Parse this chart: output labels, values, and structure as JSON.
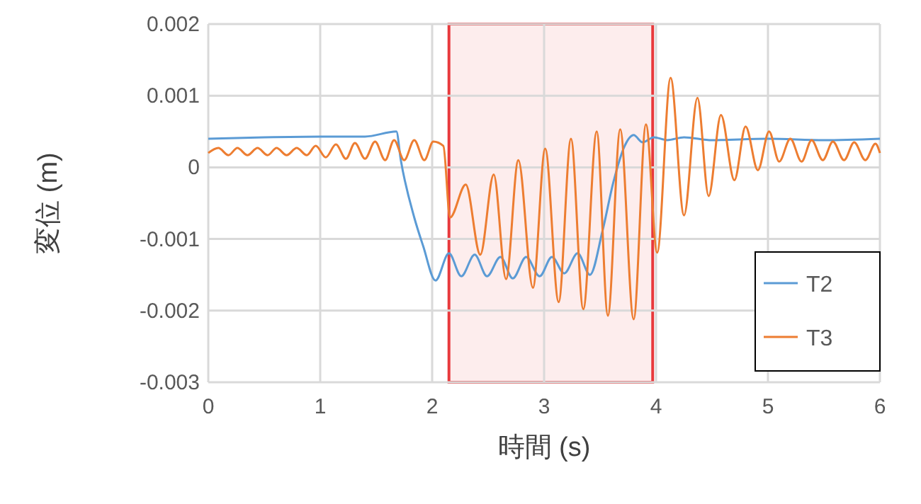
{
  "chart_data": {
    "type": "line",
    "xlabel": "時間 (s)",
    "ylabel": "変位 (m)",
    "xlim": [
      0,
      6
    ],
    "xticks": [
      0,
      1,
      2,
      3,
      4,
      5,
      6
    ],
    "ylim": [
      -0.003,
      0.002
    ],
    "yticks": [
      -0.003,
      -0.002,
      -0.001,
      0,
      0.001,
      0.002
    ],
    "grid": true,
    "legend": "bottom right",
    "marker": "none",
    "line_style": "solid",
    "bands": [
      {
        "axis": "x",
        "from": 2.15,
        "to": 3.97,
        "color": "#e8393c"
      }
    ],
    "series": [
      {
        "name": "T2",
        "color": "#5b9bd5",
        "x": [
          0,
          0.5,
          1.0,
          1.4,
          1.68,
          1.72,
          1.84,
          1.92,
          2.03,
          2.15,
          2.26,
          2.38,
          2.49,
          2.61,
          2.72,
          2.84,
          2.96,
          3.07,
          3.18,
          3.3,
          3.41,
          3.52,
          3.62,
          3.72,
          3.8,
          3.88,
          3.98,
          4.1,
          4.25,
          4.5,
          5.0,
          5.5,
          6.0
        ],
        "values": [
          0.0004,
          0.00042,
          0.00043,
          0.00043,
          0.0005,
          0.0001,
          -0.0007,
          -0.0011,
          -0.00158,
          -0.0012,
          -0.00152,
          -0.00122,
          -0.00152,
          -0.00125,
          -0.00155,
          -0.00125,
          -0.00152,
          -0.00125,
          -0.00148,
          -0.0012,
          -0.0015,
          -0.0009,
          -0.0002,
          0.0003,
          0.00045,
          0.00035,
          0.00042,
          0.00038,
          0.00042,
          0.00038,
          0.0004,
          0.00038,
          0.0004
        ]
      },
      {
        "name": "T3",
        "color": "#ed7d31",
        "x": [
          0,
          0.09,
          0.18,
          0.26,
          0.35,
          0.44,
          0.53,
          0.61,
          0.7,
          0.79,
          0.88,
          0.96,
          1.05,
          1.14,
          1.23,
          1.31,
          1.4,
          1.49,
          1.58,
          1.66,
          1.75,
          1.84,
          1.93,
          2.01,
          2.1,
          2.16,
          2.3,
          2.43,
          2.55,
          2.66,
          2.77,
          2.9,
          3.01,
          3.13,
          3.24,
          3.35,
          3.47,
          3.57,
          3.68,
          3.8,
          3.91,
          4.01,
          4.13,
          4.25,
          4.37,
          4.47,
          4.58,
          4.7,
          4.8,
          4.91,
          5.01,
          5.1,
          5.2,
          5.3,
          5.39,
          5.49,
          5.58,
          5.68,
          5.77,
          5.87,
          5.96,
          6.0
        ],
        "values": [
          0.0002,
          0.00027,
          0.00017,
          0.00027,
          0.00017,
          0.00027,
          0.00017,
          0.00027,
          0.00017,
          0.00027,
          0.00017,
          0.0003,
          0.00014,
          0.00032,
          0.00012,
          0.00034,
          0.00012,
          0.00036,
          0.0001,
          0.00038,
          0.0001,
          0.00038,
          0.0001,
          0.00036,
          0.0003,
          -0.0007,
          -0.00024,
          -0.00122,
          -0.0001,
          -0.00156,
          0.0001,
          -0.00168,
          0.00026,
          -0.00188,
          0.0004,
          -0.00198,
          0.0005,
          -0.00207,
          0.00053,
          -0.00212,
          0.0006,
          -0.00119,
          0.00125,
          -0.00067,
          0.00097,
          -0.0004,
          0.00073,
          -0.00018,
          0.00057,
          -4e-05,
          0.0005,
          8e-05,
          0.0004,
          8e-05,
          0.00038,
          0.0001,
          0.00036,
          0.0001,
          0.00035,
          0.0001,
          0.00033,
          0.0002
        ]
      }
    ]
  }
}
